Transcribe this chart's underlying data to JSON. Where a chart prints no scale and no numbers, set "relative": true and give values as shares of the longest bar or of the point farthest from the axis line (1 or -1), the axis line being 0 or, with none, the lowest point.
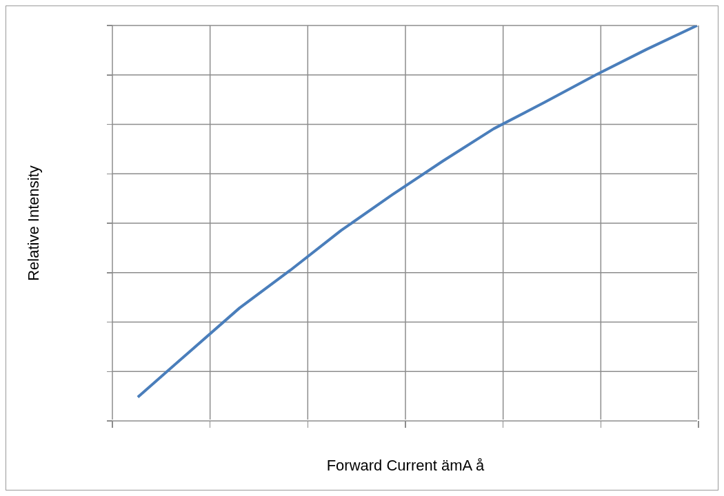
{
  "chart_data": {
    "type": "line",
    "xlabel": "Forward Current ämA å",
    "ylabel": "Relative Intensity",
    "relative": true,
    "grid": true,
    "categories": [
      null,
      null,
      null,
      null,
      null,
      null,
      null,
      null,
      null,
      null,
      null,
      null
    ],
    "series": [
      {
        "color": "#4a7ebb",
        "values": [
          0.057,
          0.17,
          0.283,
          0.379,
          0.48,
          0.57,
          0.656,
          0.738,
          0.805,
          0.874,
          0.939,
          1
        ]
      }
    ]
  }
}
